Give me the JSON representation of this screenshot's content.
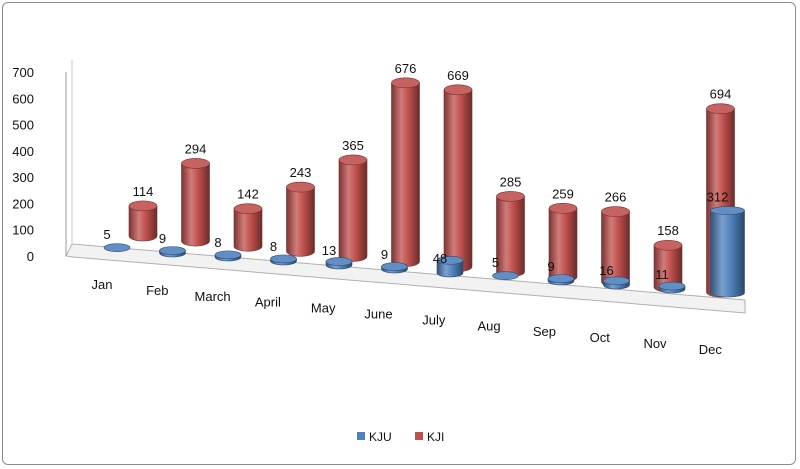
{
  "chart_data": {
    "type": "bar",
    "categories": [
      "Jan",
      "Feb",
      "March",
      "April",
      "May",
      "June",
      "July",
      "Aug",
      "Sep",
      "Oct",
      "Nov",
      "Dec"
    ],
    "series": [
      {
        "name": "KJU",
        "values": [
          5,
          9,
          8,
          8,
          13,
          9,
          48,
          5,
          9,
          16,
          11,
          312
        ],
        "color": "#4f81bd"
      },
      {
        "name": "KJI",
        "values": [
          114,
          294,
          142,
          243,
          365,
          676,
          669,
          285,
          259,
          266,
          158,
          694
        ],
        "color": "#c0504d"
      }
    ],
    "ylim": [
      0,
      700
    ],
    "yticks": [
      "0",
      "100",
      "200",
      "300",
      "400",
      "500",
      "600",
      "700"
    ],
    "grid": false,
    "legend_position": "bottom",
    "style": "3d-cylinder"
  }
}
